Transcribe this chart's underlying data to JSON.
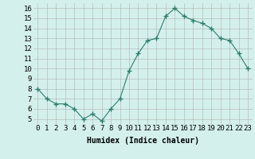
{
  "x": [
    0,
    1,
    2,
    3,
    4,
    5,
    6,
    7,
    8,
    9,
    10,
    11,
    12,
    13,
    14,
    15,
    16,
    17,
    18,
    19,
    20,
    21,
    22,
    23
  ],
  "y": [
    8,
    7,
    6.5,
    6.5,
    6,
    5,
    5.5,
    4.8,
    6,
    7,
    9.8,
    11.5,
    12.8,
    13,
    15.2,
    16,
    15.2,
    14.8,
    14.5,
    14,
    13,
    12.8,
    11.5,
    10
  ],
  "line_color": "#2d7d6e",
  "marker": "+",
  "marker_size": 4,
  "bg_color": "#d4f0ec",
  "grid_color": "#b0b0b0",
  "xlabel": "Humidex (Indice chaleur)",
  "xlim": [
    -0.5,
    23.5
  ],
  "ylim": [
    4.5,
    16.5
  ],
  "yticks": [
    5,
    6,
    7,
    8,
    9,
    10,
    11,
    12,
    13,
    14,
    15,
    16
  ],
  "xticks": [
    0,
    1,
    2,
    3,
    4,
    5,
    6,
    7,
    8,
    9,
    10,
    11,
    12,
    13,
    14,
    15,
    16,
    17,
    18,
    19,
    20,
    21,
    22,
    23
  ],
  "xlabel_fontsize": 7,
  "tick_fontsize": 6.5
}
